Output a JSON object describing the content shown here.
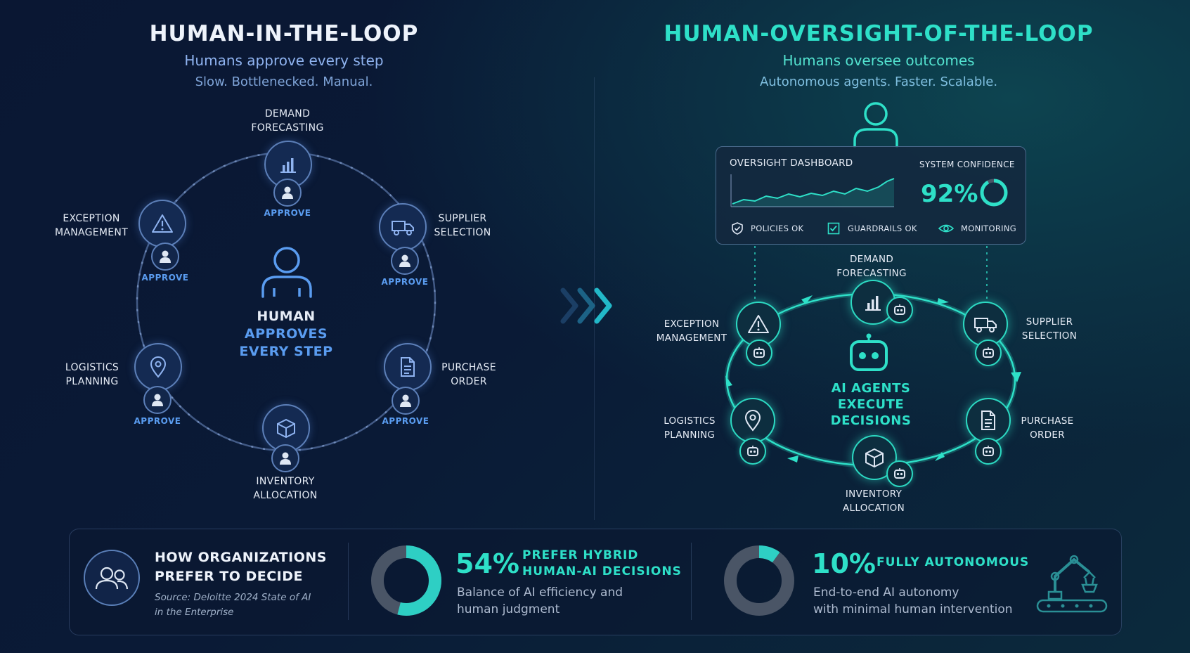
{
  "left": {
    "title": "HUMAN-IN-THE-LOOP",
    "subtitle": "Humans approve every step",
    "tagline": "Slow. Bottlenecked. Manual.",
    "center": [
      "HUMAN",
      "APPROVES",
      "EVERY STEP"
    ],
    "approve_label": "APPROVE",
    "nodes": {
      "demand": [
        "DEMAND",
        "FORECASTING"
      ],
      "supplier": [
        "SUPPLIER",
        "SELECTION"
      ],
      "purchase": [
        "PURCHASE",
        "ORDER"
      ],
      "inventory": [
        "INVENTORY",
        "ALLOCATION"
      ],
      "logistics": [
        "LOGISTICS",
        "PLANNING"
      ],
      "exception": [
        "EXCEPTION",
        "MANAGEMENT"
      ]
    }
  },
  "right": {
    "title": "HUMAN-OVERSIGHT-OF-THE-LOOP",
    "subtitle": "Humans oversee outcomes",
    "tagline": "Autonomous agents. Faster. Scalable.",
    "center": [
      "AI AGENTS",
      "EXECUTE",
      "DECISIONS"
    ],
    "dashboard": {
      "title": "OVERSIGHT DASHBOARD",
      "confidence_label": "SYSTEM CONFIDENCE",
      "confidence_value": "92%",
      "confidence_fraction": 0.92,
      "status": [
        "POLICIES OK",
        "GUARDRAILS OK",
        "MONITORING"
      ]
    },
    "nodes": {
      "demand": [
        "DEMAND",
        "FORECASTING"
      ],
      "supplier": [
        "SUPPLIER",
        "SELECTION"
      ],
      "purchase": [
        "PURCHASE",
        "ORDER"
      ],
      "inventory": [
        "INVENTORY",
        "ALLOCATION"
      ],
      "logistics": [
        "LOGISTICS",
        "PLANNING"
      ],
      "exception": [
        "EXCEPTION",
        "MANAGEMENT"
      ]
    }
  },
  "bottom": {
    "title": [
      "HOW ORGANIZATIONS",
      "PREFER TO DECIDE"
    ],
    "source": [
      "Source: Deloitte 2024 State of AI",
      "in the Enterprise"
    ],
    "stat1": {
      "value": "54%",
      "fraction": 0.54,
      "label": [
        "PREFER HYBRID",
        "HUMAN-AI DECISIONS"
      ],
      "desc": [
        "Balance of AI efficiency and",
        "human judgment"
      ]
    },
    "stat2": {
      "value": "10%",
      "fraction": 0.1,
      "label": [
        "FULLY AUTONOMOUS"
      ],
      "desc": [
        "End-to-end AI autonomy",
        "with minimal human intervention"
      ]
    }
  },
  "colors": {
    "accent_teal": "#2ee0c8",
    "accent_blue": "#5a9cf0",
    "donut_track": "#4a5566"
  }
}
